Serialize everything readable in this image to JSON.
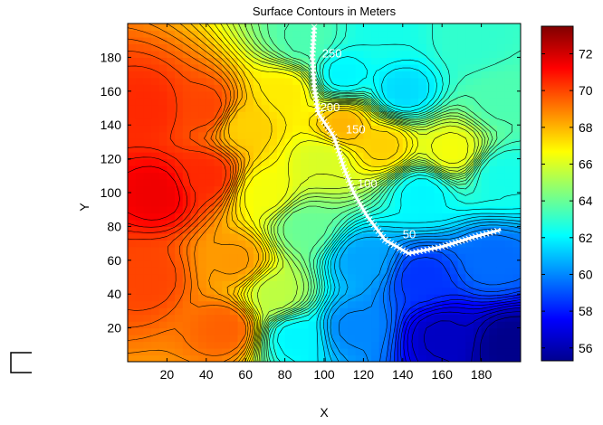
{
  "chart_data": {
    "type": "heatmap",
    "title": "Surface Contours in Meters",
    "xlabel": "X",
    "ylabel": "Y",
    "xlim": [
      0,
      200
    ],
    "ylim": [
      0,
      200
    ],
    "xticks": [
      20,
      40,
      60,
      80,
      100,
      120,
      140,
      160,
      180
    ],
    "yticks": [
      20,
      40,
      60,
      80,
      100,
      120,
      140,
      160,
      180
    ],
    "colorbar": {
      "range": [
        55.3,
        73.5
      ],
      "ticks": [
        56,
        58,
        60,
        62,
        64,
        66,
        68,
        70,
        72
      ],
      "colormap": "jet",
      "colors": [
        "#00008f",
        "#0000ff",
        "#00ffff",
        "#ffff00",
        "#ff0000",
        "#800000"
      ]
    },
    "surface_points": [
      {
        "x": 10,
        "y": 150,
        "z": 70.5
      },
      {
        "x": 15,
        "y": 100,
        "z": 71.5
      },
      {
        "x": 10,
        "y": 50,
        "z": 70.0
      },
      {
        "x": 40,
        "y": 150,
        "z": 70.0
      },
      {
        "x": 40,
        "y": 110,
        "z": 70.5
      },
      {
        "x": 55,
        "y": 60,
        "z": 68.5
      },
      {
        "x": 70,
        "y": 100,
        "z": 66.5
      },
      {
        "x": 60,
        "y": 140,
        "z": 67.5
      },
      {
        "x": 80,
        "y": 160,
        "z": 67.0
      },
      {
        "x": 75,
        "y": 40,
        "z": 65.5
      },
      {
        "x": 90,
        "y": 190,
        "z": 63.5
      },
      {
        "x": 130,
        "y": 195,
        "z": 62.5
      },
      {
        "x": 175,
        "y": 190,
        "z": 63.0
      },
      {
        "x": 140,
        "y": 160,
        "z": 61.5
      },
      {
        "x": 110,
        "y": 170,
        "z": 62.0
      },
      {
        "x": 190,
        "y": 155,
        "z": 63.5
      },
      {
        "x": 165,
        "y": 125,
        "z": 66.5
      },
      {
        "x": 130,
        "y": 128,
        "z": 67.5
      },
      {
        "x": 110,
        "y": 140,
        "z": 68.0
      },
      {
        "x": 100,
        "y": 120,
        "z": 66.0
      },
      {
        "x": 90,
        "y": 80,
        "z": 64.0
      },
      {
        "x": 150,
        "y": 100,
        "z": 62.0
      },
      {
        "x": 190,
        "y": 110,
        "z": 62.5
      },
      {
        "x": 185,
        "y": 60,
        "z": 59.5
      },
      {
        "x": 150,
        "y": 50,
        "z": 58.5
      },
      {
        "x": 120,
        "y": 60,
        "z": 60.5
      },
      {
        "x": 115,
        "y": 20,
        "z": 60.0
      },
      {
        "x": 160,
        "y": 15,
        "z": 56.5
      },
      {
        "x": 195,
        "y": 10,
        "z": 55.5
      },
      {
        "x": 85,
        "y": 15,
        "z": 62.0
      },
      {
        "x": 50,
        "y": 20,
        "z": 69.5
      }
    ],
    "path": {
      "points": [
        {
          "x": 95,
          "y": 198
        },
        {
          "x": 94,
          "y": 180
        },
        {
          "x": 95,
          "y": 162
        },
        {
          "x": 97,
          "y": 147
        },
        {
          "x": 105,
          "y": 133
        },
        {
          "x": 110,
          "y": 115
        },
        {
          "x": 115,
          "y": 100
        },
        {
          "x": 122,
          "y": 86
        },
        {
          "x": 131,
          "y": 72
        },
        {
          "x": 143,
          "y": 64
        },
        {
          "x": 160,
          "y": 68
        },
        {
          "x": 177,
          "y": 74
        },
        {
          "x": 190,
          "y": 78
        }
      ],
      "labels": [
        {
          "text": "50",
          "x": 140,
          "y": 73
        },
        {
          "text": "100",
          "x": 117,
          "y": 103
        },
        {
          "text": "150",
          "x": 111,
          "y": 135
        },
        {
          "text": "200",
          "x": 98,
          "y": 148
        },
        {
          "text": "250",
          "x": 99,
          "y": 180
        }
      ]
    }
  },
  "legend_box": {
    "shape": "outline-corner",
    "color": "#000000"
  }
}
